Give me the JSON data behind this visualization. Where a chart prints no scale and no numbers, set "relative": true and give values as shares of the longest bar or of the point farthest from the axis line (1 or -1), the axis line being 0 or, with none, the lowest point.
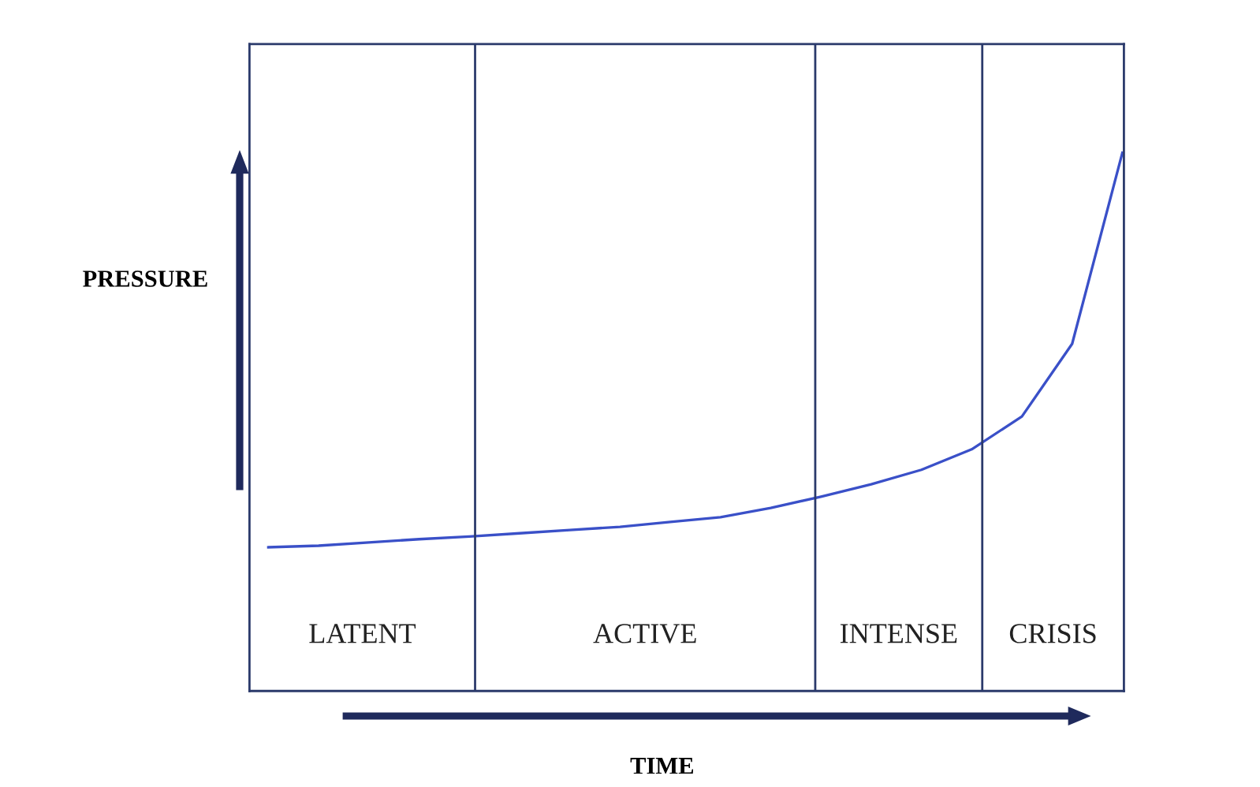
{
  "chart_data": {
    "type": "line",
    "relative": true,
    "xlabel": "TIME",
    "ylabel": "PRESSURE",
    "marker": "none",
    "line_style": "solid",
    "categories": [
      null,
      null,
      null,
      null,
      null,
      null,
      null,
      null,
      null,
      null,
      null,
      null,
      null,
      null,
      null,
      null,
      null,
      null
    ],
    "series": [
      {
        "color": "#3a50c8",
        "values": [
          0.267,
          0.27,
          0.276,
          0.282,
          0.287,
          0.293,
          0.299,
          0.305,
          0.314,
          0.323,
          0.34,
          0.361,
          0.384,
          0.411,
          0.449,
          0.51,
          0.645,
          1.0
        ]
      }
    ],
    "annotations": [
      "LATENT",
      "ACTIVE",
      "INTENSE",
      "CRISIS"
    ]
  }
}
